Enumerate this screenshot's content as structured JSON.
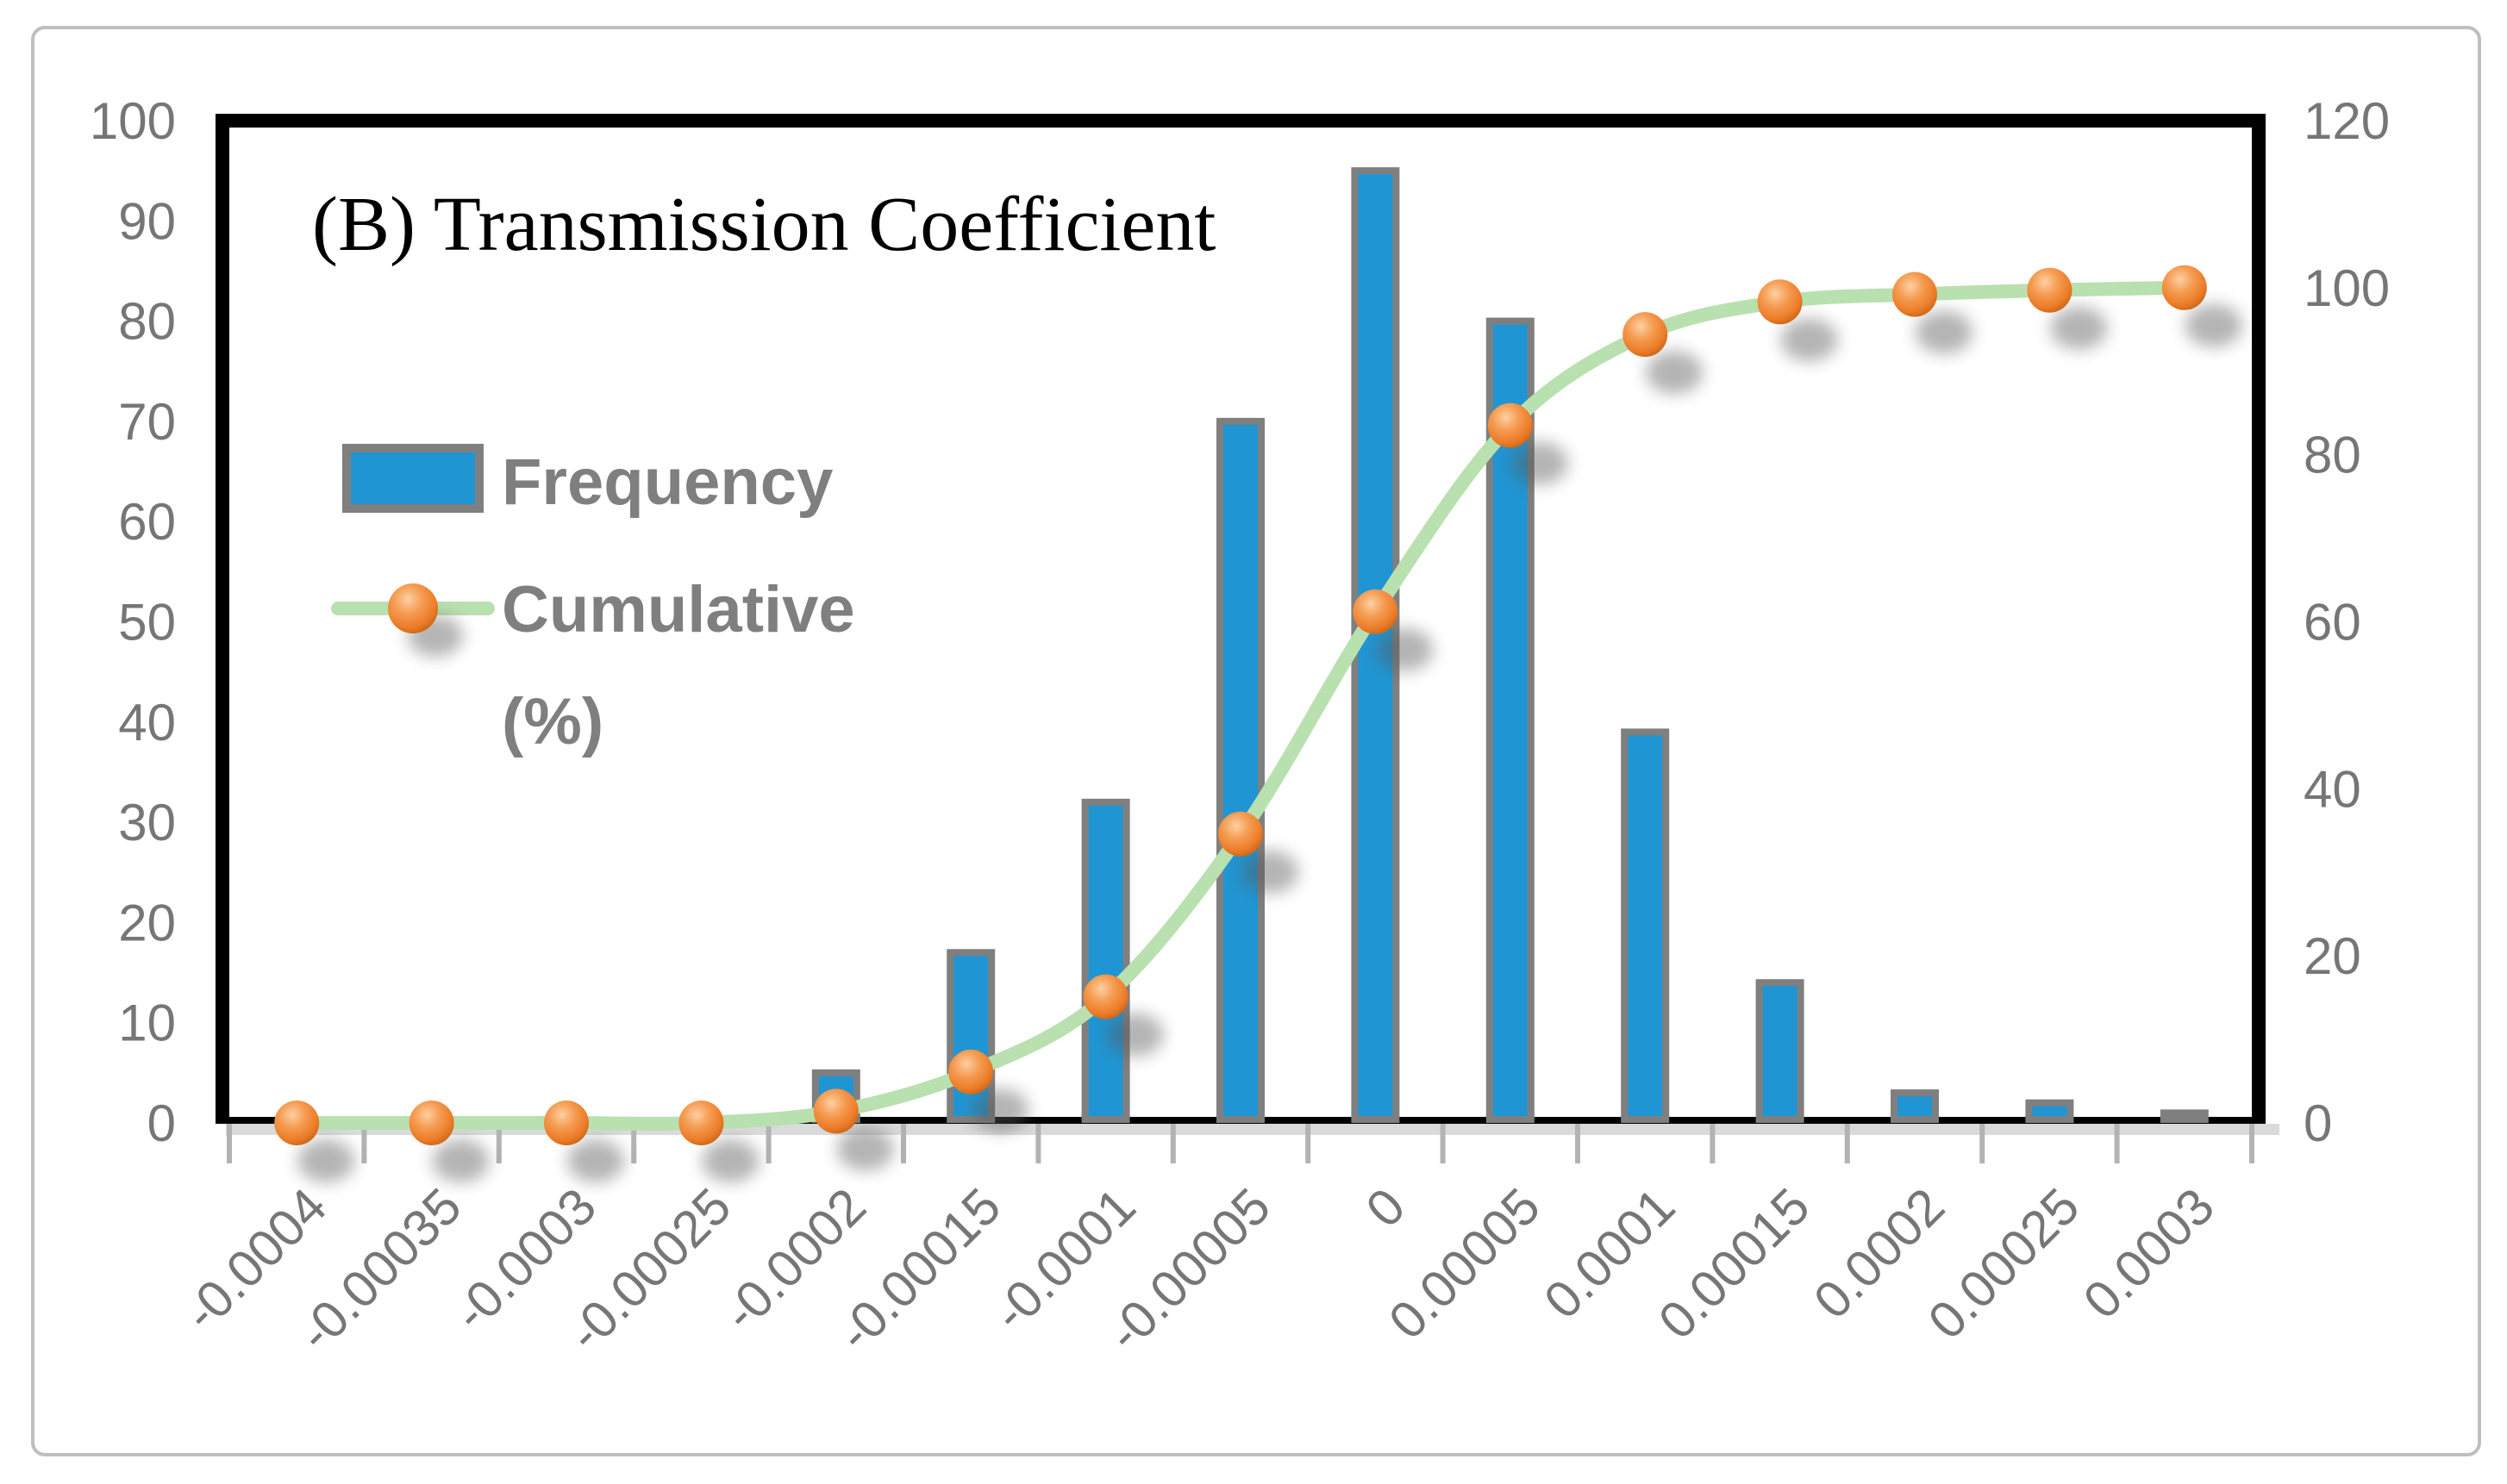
{
  "figure": {
    "title": "(B) Transmission Coefficient",
    "legend": {
      "frequency_label": "Frequency",
      "cumulative_label_line1": "Cumulative",
      "cumulative_label_line2": "(%)"
    },
    "colors": {
      "bar_fill": "#2095d3",
      "bar_border": "#7f7f7f",
      "cumulative_line": "#b9e0af",
      "marker_orange": "#ec7c28",
      "axis_text": "#767676",
      "legend_text": "#7f7f7f",
      "plot_frame": "#000000",
      "figure_border": "#bfbfbf",
      "axis_shadow": "#dadada",
      "tick": "#b3b3b3"
    }
  },
  "chart_data": {
    "type": "bar",
    "subtype": "pareto-histogram",
    "title": "(B) Transmission Coefficient",
    "categories": [
      "-0.0004",
      "-0.00035",
      "-0.0003",
      "-0.00025",
      "-0.0002",
      "-0.00015",
      "-0.0001",
      "-0.00005",
      "0",
      "0.00005",
      "0.0001",
      "0.00015",
      "0.0002",
      "0.00025",
      "0.0003"
    ],
    "series": [
      {
        "name": "Frequency",
        "type": "bar",
        "axis": "left",
        "color": "#2095d3",
        "values": [
          0,
          0,
          0,
          0,
          5,
          17,
          32,
          70,
          95,
          80,
          39,
          14,
          3,
          2,
          1
        ]
      },
      {
        "name": "Cumulative (%)",
        "type": "line",
        "axis": "right",
        "color": "#b9e0af",
        "marker_color": "#ec7c28",
        "values": [
          0,
          0,
          0,
          0,
          1.4,
          6.1,
          15.1,
          34.6,
          61.2,
          83.5,
          94.4,
          98.3,
          99.2,
          99.7,
          100
        ]
      }
    ],
    "left_axis": {
      "min": 0,
      "max": 100,
      "ticks": [
        0,
        10,
        20,
        30,
        40,
        50,
        60,
        70,
        80,
        90,
        100
      ]
    },
    "right_axis": {
      "min": 0,
      "max": 120,
      "ticks": [
        0,
        20,
        40,
        60,
        80,
        100,
        120
      ]
    },
    "grid": false,
    "legend_position": "inside-top-left",
    "x_tick_rotation_deg": 45
  }
}
